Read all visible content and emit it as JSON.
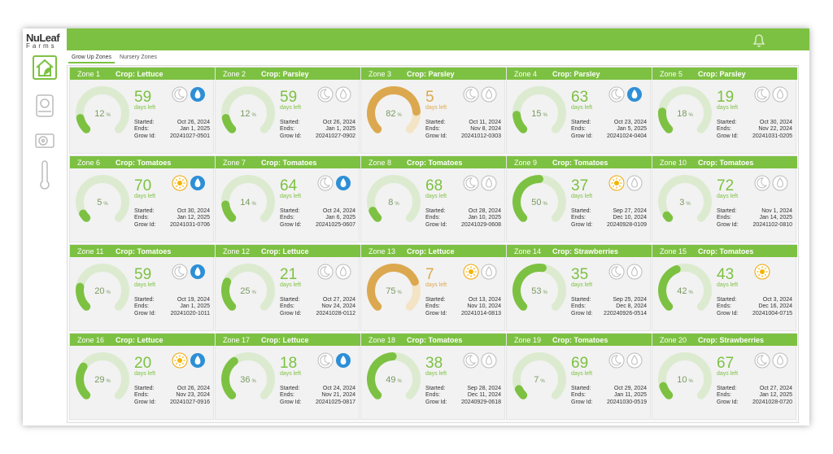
{
  "brand": {
    "name": "NuLeaf",
    "sub": "Farms"
  },
  "tabs": [
    "Grow Up Zones",
    "Nursery Zones"
  ],
  "labels": {
    "days": "days left",
    "started": "Started:",
    "ends": "Ends:",
    "grow_id": "Grow Id:",
    "percent": "%"
  },
  "zones": [
    {
      "zone": "Zone 1",
      "crop": "Crop: Lettuce",
      "percent": 12,
      "days": 59,
      "started": "Oct 26, 2024",
      "ends": "Jan 1, 2025",
      "grow_id": "20241027-0501",
      "color": "#7dc142",
      "icons": [
        "moon",
        "drop-on"
      ]
    },
    {
      "zone": "Zone 2",
      "crop": "Crop: Parsley",
      "percent": 12,
      "days": 59,
      "started": "Oct 26, 2024",
      "ends": "Jan 1, 2025",
      "grow_id": "20241027-0902",
      "color": "#7dc142",
      "icons": [
        "moon",
        "drop"
      ]
    },
    {
      "zone": "Zone 3",
      "crop": "Crop: Parsley",
      "percent": 82,
      "days": 5,
      "started": "Oct 11, 2024",
      "ends": "Nov 8, 2024",
      "grow_id": "20241012-0303",
      "color": "#dca84f",
      "icons": [
        "moon",
        "drop"
      ]
    },
    {
      "zone": "Zone 4",
      "crop": "Crop: Parsley",
      "percent": 15,
      "days": 63,
      "started": "Oct 23, 2024",
      "ends": "Jan 5, 2025",
      "grow_id": "20241024-0404",
      "color": "#7dc142",
      "icons": [
        "moon",
        "drop-on"
      ]
    },
    {
      "zone": "Zone 5",
      "crop": "Crop: Parsley",
      "percent": 18,
      "days": 19,
      "started": "Oct 30, 2024",
      "ends": "Nov 22, 2024",
      "grow_id": "20241031-0205",
      "color": "#7dc142",
      "icons": [
        "moon",
        "drop"
      ]
    },
    {
      "zone": "Zone 6",
      "crop": "Crop: Tomatoes",
      "percent": 5,
      "days": 70,
      "started": "Oct 30, 2024",
      "ends": "Jan 12, 2025",
      "grow_id": "20241031-0706",
      "color": "#7dc142",
      "icons": [
        "sun-on",
        "drop-on"
      ]
    },
    {
      "zone": "Zone 7",
      "crop": "Crop: Tomatoes",
      "percent": 14,
      "days": 64,
      "started": "Oct 24, 2024",
      "ends": "Jan 6, 2025",
      "grow_id": "20241025-0607",
      "color": "#7dc142",
      "icons": [
        "moon",
        "drop-on"
      ]
    },
    {
      "zone": "Zone 8",
      "crop": "Crop: Tomatoes",
      "percent": 8,
      "days": 68,
      "started": "Oct 28, 2024",
      "ends": "Jan 10, 2025",
      "grow_id": "20241029-0608",
      "color": "#7dc142",
      "icons": [
        "moon",
        "drop"
      ]
    },
    {
      "zone": "Zone 9",
      "crop": "Crop: Tomatoes",
      "percent": 50,
      "days": 37,
      "started": "Sep 27, 2024",
      "ends": "Dec 10, 2024",
      "grow_id": "20240928-0109",
      "color": "#7dc142",
      "icons": [
        "sun-on",
        "drop"
      ]
    },
    {
      "zone": "Zone 10",
      "crop": "Crop: Tomatoes",
      "percent": 3,
      "days": 72,
      "started": "Nov 1, 2024",
      "ends": "Jan 14, 2025",
      "grow_id": "20241102-0810",
      "color": "#7dc142",
      "icons": [
        "moon",
        "drop"
      ]
    },
    {
      "zone": "Zone 11",
      "crop": "Crop: Tomatoes",
      "percent": 20,
      "days": 59,
      "started": "Oct 19, 2024",
      "ends": "Jan 1, 2025",
      "grow_id": "20241020-1011",
      "color": "#7dc142",
      "icons": [
        "moon",
        "drop-on"
      ]
    },
    {
      "zone": "Zone 12",
      "crop": "Crop: Lettuce",
      "percent": 25,
      "days": 21,
      "started": "Oct 27, 2024",
      "ends": "Nov 24, 2024",
      "grow_id": "20241028-0112",
      "color": "#7dc142",
      "icons": [
        "moon",
        "drop"
      ]
    },
    {
      "zone": "Zone 13",
      "crop": "Crop: Lettuce",
      "percent": 75,
      "days": 7,
      "started": "Oct 13, 2024",
      "ends": "Nov 10, 2024",
      "grow_id": "20241014-0813",
      "color": "#dca84f",
      "icons": [
        "sun-on",
        "drop"
      ]
    },
    {
      "zone": "Zone 14",
      "crop": "Crop: Strawberries",
      "percent": 53,
      "days": 35,
      "started": "Sep 25, 2024",
      "ends": "Dec 8, 2024",
      "grow_id": "220240926-0514",
      "color": "#7dc142",
      "icons": [
        "moon",
        "drop"
      ]
    },
    {
      "zone": "Zone 15",
      "crop": "Crop: Tomatoes",
      "percent": 42,
      "days": 43,
      "started": "Oct 3, 2024",
      "ends": "Dec 16, 2024",
      "grow_id": "20241004-0715",
      "color": "#7dc142",
      "icons": [
        "sun-on"
      ]
    },
    {
      "zone": "Zone 16",
      "crop": "Crop: Lettuce",
      "percent": 29,
      "days": 20,
      "started": "Oct 26, 2024",
      "ends": "Nov 23, 2024",
      "grow_id": "20241027-0916",
      "color": "#7dc142",
      "icons": [
        "sun-on",
        "drop-on"
      ]
    },
    {
      "zone": "Zone 17",
      "crop": "Crop: Lettuce",
      "percent": 36,
      "days": 18,
      "started": "Oct 24, 2024",
      "ends": "Nov 21, 2024",
      "grow_id": "20241025-0817",
      "color": "#7dc142",
      "icons": [
        "moon",
        "drop-on"
      ]
    },
    {
      "zone": "Zone 18",
      "crop": "Crop: Tomatoes",
      "percent": 49,
      "days": 38,
      "started": "Sep 28, 2024",
      "ends": "Dec 11, 2024",
      "grow_id": "20240929-0618",
      "color": "#7dc142",
      "icons": [
        "moon",
        "drop"
      ]
    },
    {
      "zone": "Zone 19",
      "crop": "Crop: Tomatoes",
      "percent": 7,
      "days": 69,
      "started": "Oct 29, 2024",
      "ends": "Jan 11, 2025",
      "grow_id": "20241030-0519",
      "color": "#7dc142",
      "icons": [
        "moon",
        "drop"
      ]
    },
    {
      "zone": "Zone 20",
      "crop": "Crop: Strawberries",
      "percent": 10,
      "days": 67,
      "started": "Oct 27, 2024",
      "ends": "Jan 12, 2025",
      "grow_id": "20241028-0720",
      "color": "#7dc142",
      "icons": [
        "moon",
        "drop"
      ]
    }
  ]
}
